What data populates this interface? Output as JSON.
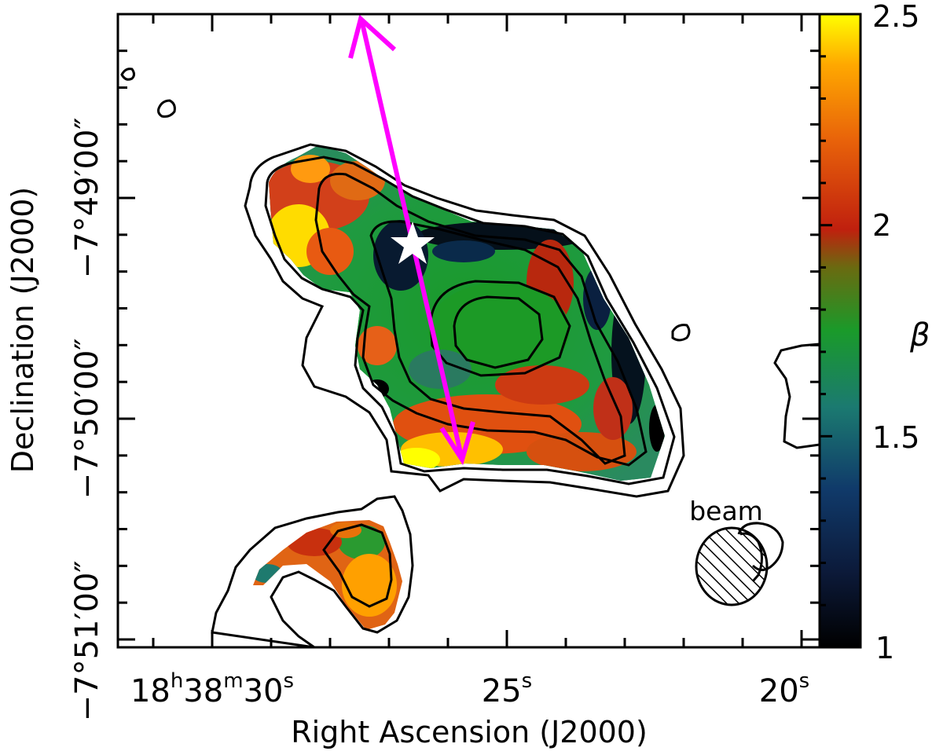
{
  "chart_data": {
    "type": "heatmap",
    "title": "",
    "xlabel": "Right Ascension (J2000)",
    "ylabel": "Declination (J2000)",
    "x_ticks": [
      {
        "label": "18h38m30s",
        "ra_s": 30,
        "parts": [
          "18",
          "h",
          "38",
          "m",
          "30",
          "s"
        ]
      },
      {
        "label": "25s",
        "ra_s": 25,
        "parts": [
          "25",
          "s"
        ]
      },
      {
        "label": "20s",
        "ra_s": 20,
        "parts": [
          "20",
          "s"
        ]
      }
    ],
    "y_ticks": [
      {
        "label": "−7°49′00″",
        "dec_arcsec": 0
      },
      {
        "label": "−7°50′00″",
        "dec_arcsec": -60
      },
      {
        "label": "−7°51′00″",
        "dec_arcsec": -120
      }
    ],
    "colorbar": {
      "label": "β",
      "range": [
        1,
        2.5
      ],
      "ticks": [
        "2.5",
        "2",
        "1.5",
        "1"
      ],
      "colormap": [
        "#000000",
        "#0c2a5a",
        "#1e7a6e",
        "#1a9a2a",
        "#c02a10",
        "#ff8a00",
        "#ffff00"
      ]
    },
    "annotations": {
      "beam_label": "beam",
      "star_color": "#ffffff",
      "arrow_color": "#ff00ff"
    }
  }
}
